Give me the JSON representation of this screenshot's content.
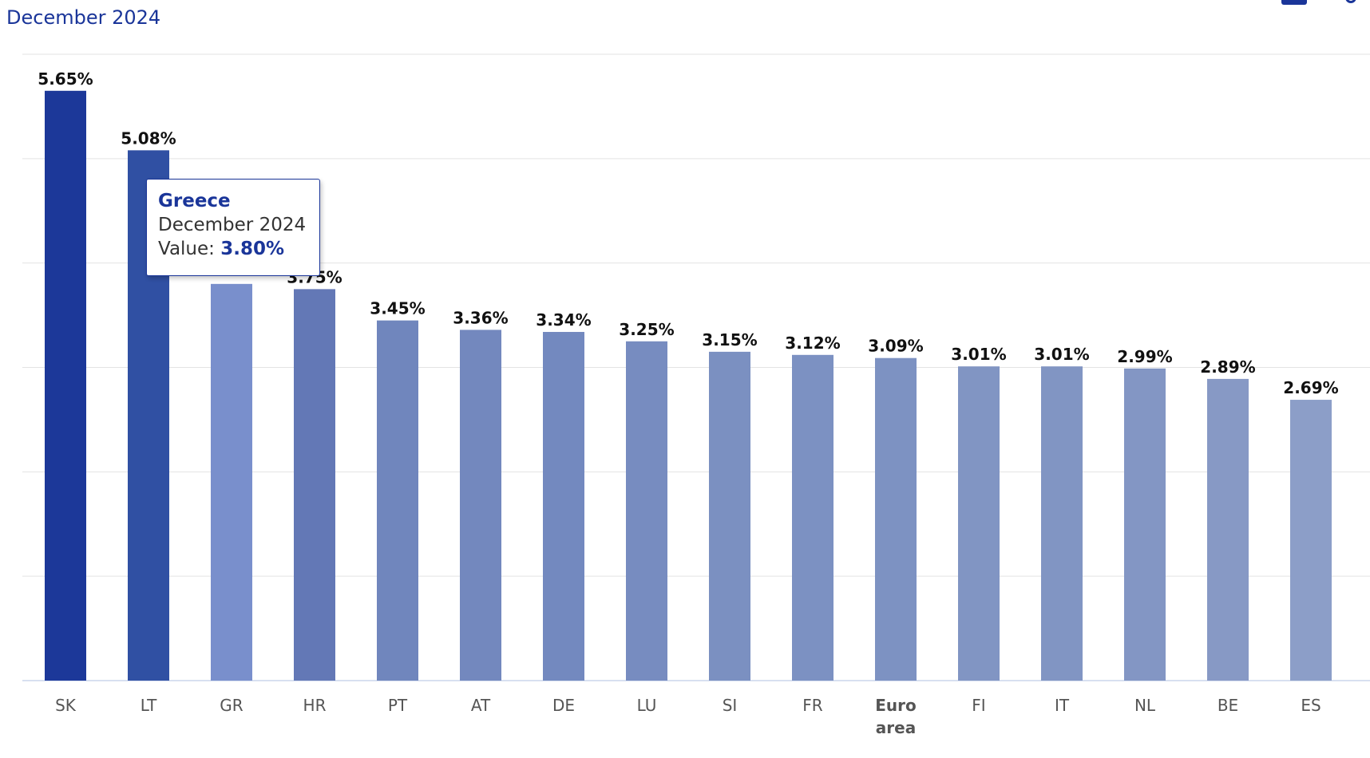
{
  "subtitle": "December 2024",
  "colors": {
    "accent": "#1a3599",
    "grid": "#e3e3e3",
    "axis": "#ccd6eb"
  },
  "icons": [
    "chart-type-icon",
    "settings-icon"
  ],
  "chart_data": {
    "type": "bar",
    "categories": [
      "SK",
      "LT",
      "GR",
      "HR",
      "PT",
      "AT",
      "DE",
      "LU",
      "SI",
      "FR",
      "Euro area",
      "FI",
      "IT",
      "NL",
      "BE",
      "ES"
    ],
    "values": [
      5.65,
      5.08,
      3.8,
      3.75,
      3.45,
      3.36,
      3.34,
      3.25,
      3.15,
      3.12,
      3.09,
      3.01,
      3.01,
      2.99,
      2.89,
      2.69
    ],
    "data_labels": [
      "5.65%",
      "5.08%",
      "",
      "3.75%",
      "3.45%",
      "3.36%",
      "3.34%",
      "3.25%",
      "3.15%",
      "3.12%",
      "3.09%",
      "3.01%",
      "3.01%",
      "2.99%",
      "2.89%",
      "2.69%"
    ],
    "bar_colors": [
      "#1c3899",
      "#3050a3",
      "#798fcc",
      "#6378b6",
      "#7086bd",
      "#7388be",
      "#7389bf",
      "#778cc0",
      "#7b90c1",
      "#7c91c2",
      "#7d92c2",
      "#8195c3",
      "#8195c3",
      "#8396c4",
      "#8799c5",
      "#8c9ec8"
    ],
    "bold_categories": [
      "Euro area"
    ],
    "ylim": [
      0,
      6
    ],
    "grid": true,
    "title": "",
    "xlabel": "",
    "ylabel": ""
  },
  "tooltip": {
    "title": "Greece",
    "date": "December 2024",
    "value_label": "Value:",
    "value": "3.80%"
  }
}
